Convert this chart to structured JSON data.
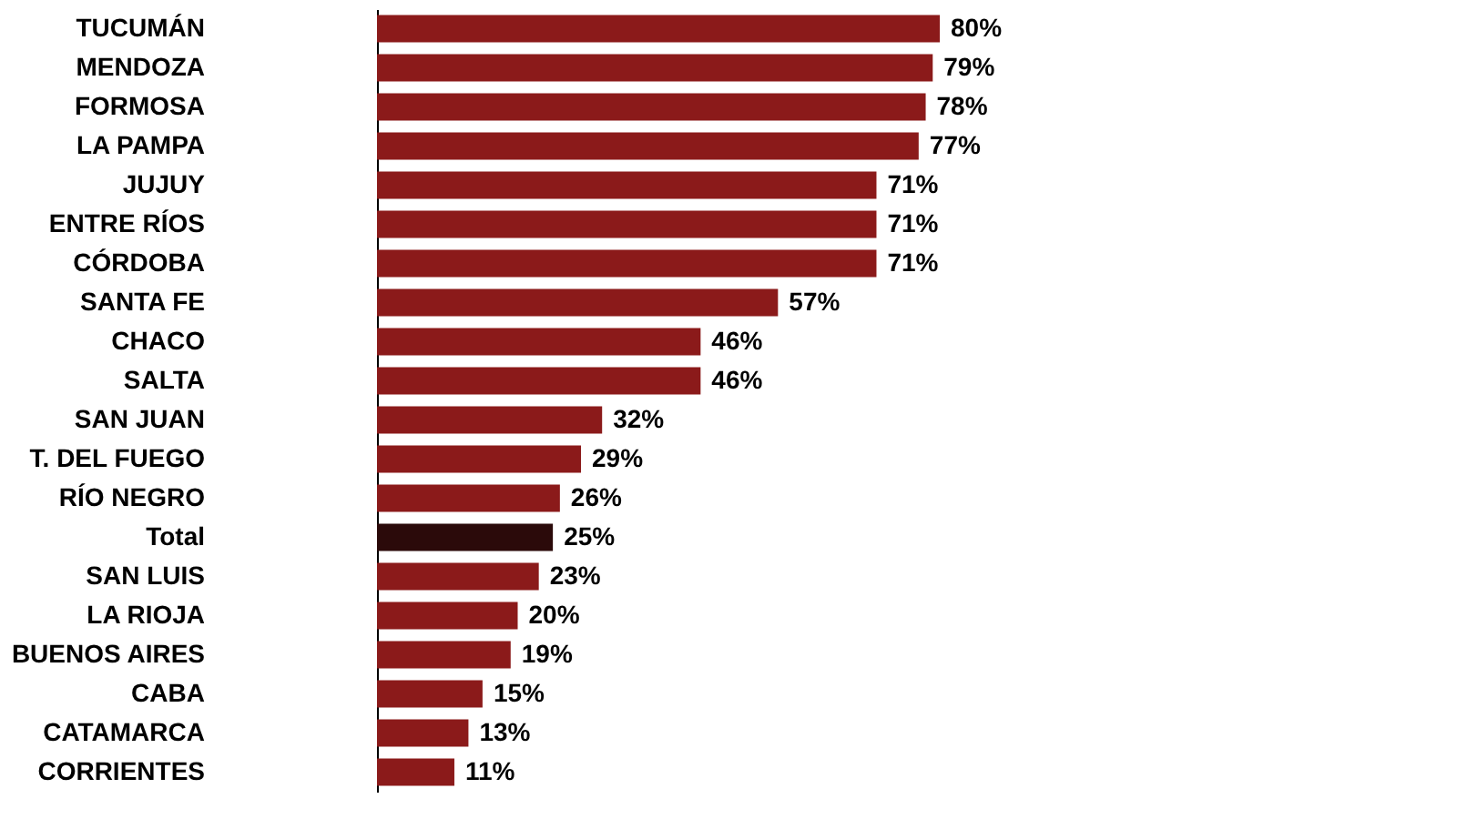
{
  "chart_data": {
    "type": "bar",
    "orientation": "horizontal",
    "grid": false,
    "categories": [
      "TUCUMÁN",
      "MENDOZA",
      "FORMOSA",
      "LA PAMPA",
      "JUJUY",
      "ENTRE RÍOS",
      "CÓRDOBA",
      "SANTA FE",
      "CHACO",
      "SALTA",
      "SAN JUAN",
      "T. DEL FUEGO",
      "RÍO NEGRO",
      "Total",
      "SAN LUIS",
      "LA RIOJA",
      "BUENOS AIRES",
      "CABA",
      "CATAMARCA",
      "CORRIENTES"
    ],
    "values": [
      80,
      79,
      78,
      77,
      71,
      71,
      71,
      57,
      46,
      46,
      32,
      29,
      26,
      25,
      23,
      20,
      19,
      15,
      13,
      11
    ],
    "value_labels": [
      "80%",
      "79%",
      "78%",
      "77%",
      "71%",
      "71%",
      "71%",
      "57%",
      "46%",
      "46%",
      "32%",
      "29%",
      "26%",
      "25%",
      "23%",
      "20%",
      "19%",
      "15%",
      "13%",
      "11%"
    ],
    "colors": [
      "#8b1a1a",
      "#8b1a1a",
      "#8b1a1a",
      "#8b1a1a",
      "#8b1a1a",
      "#8b1a1a",
      "#8b1a1a",
      "#8b1a1a",
      "#8b1a1a",
      "#8b1a1a",
      "#8b1a1a",
      "#8b1a1a",
      "#8b1a1a",
      "#2b0a0a",
      "#8b1a1a",
      "#8b1a1a",
      "#8b1a1a",
      "#8b1a1a",
      "#8b1a1a",
      "#8b1a1a"
    ]
  }
}
